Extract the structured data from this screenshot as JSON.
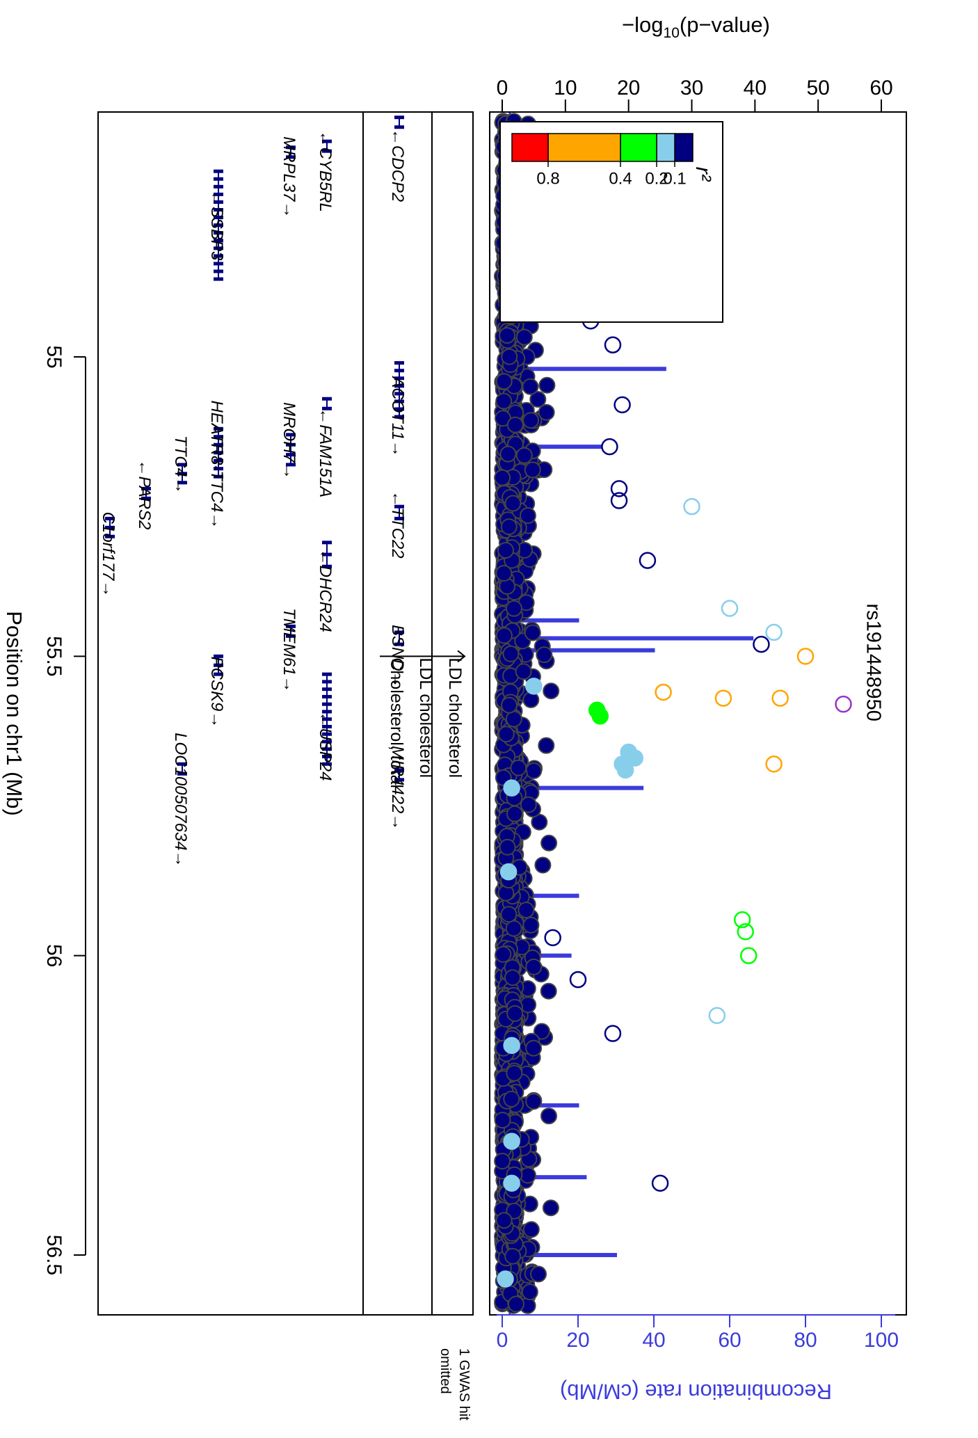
{
  "chart_data": {
    "type": "scatter",
    "orientation": "rotated-90-clockwise",
    "ylabel_pre": "−log",
    "ylabel_sub": "10",
    "ylabel_post": "(p−value)",
    "ylim": [
      0,
      60
    ],
    "yticks": [
      "0",
      "10",
      "20",
      "30",
      "40",
      "50",
      "60"
    ],
    "rec_label": "Recombination rate (cM/Mb)",
    "rec_ylim": [
      0,
      100
    ],
    "rec_ticks": [
      "0",
      "20",
      "40",
      "60",
      "80",
      "100"
    ],
    "xlabel": "Position on chr1 (Mb)",
    "xlim": [
      54.6,
      56.55
    ],
    "xticks": [
      "55",
      "55.5",
      "56",
      "56.5"
    ],
    "lead_snp": {
      "label": "rs191448950",
      "x": 55.58,
      "y": 54
    },
    "legend": {
      "title": "r²",
      "bins": [
        {
          "color": "#000080"
        },
        {
          "color": "#87ceeb"
        },
        {
          "color": "#00ff00"
        },
        {
          "color": "#ffa500"
        },
        {
          "color": "#ff0000"
        }
      ],
      "labels": [
        "0.1",
        "0.2",
        "0.4",
        "0.8"
      ]
    },
    "gwas_track": {
      "labels": [
        "LDL cholesterol",
        "LDL cholesterol",
        "Cholesterol, total"
      ],
      "x": 55.5,
      "note_line1": "1 GWAS hit",
      "note_line2": "omitted"
    },
    "highlighted_points": [
      {
        "x": 55.5,
        "y": 48,
        "r2_bin": "0.4-0.8"
      },
      {
        "x": 55.56,
        "y": 25.5,
        "r2_bin": "0.4-0.8"
      },
      {
        "x": 55.57,
        "y": 35,
        "r2_bin": "0.4-0.8"
      },
      {
        "x": 55.57,
        "y": 44,
        "r2_bin": "0.4-0.8"
      },
      {
        "x": 55.68,
        "y": 43,
        "r2_bin": "0.4-0.8"
      },
      {
        "x": 55.59,
        "y": 15,
        "r2_bin": "0.2-0.4"
      },
      {
        "x": 55.6,
        "y": 15.5,
        "r2_bin": "0.2-0.4"
      },
      {
        "x": 56.0,
        "y": 39,
        "r2_bin": "0.2-0.4"
      },
      {
        "x": 55.94,
        "y": 38,
        "r2_bin": "0.2-0.4"
      },
      {
        "x": 55.96,
        "y": 38.5,
        "r2_bin": "0.2-0.4"
      },
      {
        "x": 55.25,
        "y": 30,
        "r2_bin": "0.1-0.2"
      },
      {
        "x": 55.42,
        "y": 36,
        "r2_bin": "0.1-0.2"
      },
      {
        "x": 55.46,
        "y": 43,
        "r2_bin": "0.1-0.2"
      },
      {
        "x": 56.1,
        "y": 34,
        "r2_bin": "0.1-0.2"
      },
      {
        "x": 55.55,
        "y": 5,
        "r2_bin": "0.1-0.2"
      },
      {
        "x": 55.66,
        "y": 20,
        "r2_bin": "0.1-0.2"
      },
      {
        "x": 55.67,
        "y": 21,
        "r2_bin": "0.1-0.2"
      },
      {
        "x": 55.68,
        "y": 19,
        "r2_bin": "0.1-0.2"
      },
      {
        "x": 55.69,
        "y": 19.5,
        "r2_bin": "0.1-0.2"
      },
      {
        "x": 55.72,
        "y": 1.5,
        "r2_bin": "0.1-0.2"
      },
      {
        "x": 55.86,
        "y": 1,
        "r2_bin": "0.1-0.2"
      },
      {
        "x": 56.15,
        "y": 1.5,
        "r2_bin": "0.1-0.2"
      },
      {
        "x": 56.31,
        "y": 1.5,
        "r2_bin": "0.1-0.2"
      },
      {
        "x": 56.38,
        "y": 1.5,
        "r2_bin": "0.1-0.2"
      },
      {
        "x": 56.54,
        "y": 0.5,
        "r2_bin": "0.1-0.2"
      }
    ],
    "notable_low_ld_points": [
      {
        "x": 54.65,
        "y": 15
      },
      {
        "x": 54.66,
        "y": 15.5
      },
      {
        "x": 54.7,
        "y": 17.5
      },
      {
        "x": 54.75,
        "y": 21
      },
      {
        "x": 54.85,
        "y": 24
      },
      {
        "x": 54.87,
        "y": 23
      },
      {
        "x": 54.9,
        "y": 24.5
      },
      {
        "x": 54.88,
        "y": 23.5
      },
      {
        "x": 54.94,
        "y": 14
      },
      {
        "x": 54.98,
        "y": 17.5
      },
      {
        "x": 55.08,
        "y": 19
      },
      {
        "x": 55.15,
        "y": 17
      },
      {
        "x": 55.22,
        "y": 18.5
      },
      {
        "x": 55.24,
        "y": 18.5
      },
      {
        "x": 55.34,
        "y": 23
      },
      {
        "x": 55.48,
        "y": 41
      },
      {
        "x": 56.13,
        "y": 17.5
      },
      {
        "x": 56.38,
        "y": 25
      },
      {
        "x": 56.04,
        "y": 12
      },
      {
        "x": 55.97,
        "y": 8
      }
    ],
    "recombination_peaks": [
      {
        "x": 54.7,
        "y": 12
      },
      {
        "x": 54.78,
        "y": 38
      },
      {
        "x": 55.02,
        "y": 43
      },
      {
        "x": 55.15,
        "y": 26
      },
      {
        "x": 55.24,
        "y": 8
      },
      {
        "x": 55.44,
        "y": 20
      },
      {
        "x": 55.47,
        "y": 66
      },
      {
        "x": 55.49,
        "y": 40
      },
      {
        "x": 55.72,
        "y": 37
      },
      {
        "x": 55.9,
        "y": 20
      },
      {
        "x": 56.0,
        "y": 18
      },
      {
        "x": 56.25,
        "y": 20
      },
      {
        "x": 56.37,
        "y": 22
      },
      {
        "x": 56.5,
        "y": 30
      }
    ],
    "genes": [
      {
        "name": "CDCP2",
        "start": 54.6,
        "end": 54.61,
        "row": 0,
        "strand": "-"
      },
      {
        "name": "CYB5RL",
        "start": 54.64,
        "end": 54.655,
        "row": 2,
        "strand": "-"
      },
      {
        "name": "MRPL37",
        "start": 54.65,
        "end": 54.665,
        "row": 3,
        "strand": "+"
      },
      {
        "name": "SSBP3",
        "start": 54.69,
        "end": 54.87,
        "row": 5,
        "strand": "-"
      },
      {
        "name": "ACOT11",
        "start": 55.01,
        "end": 55.1,
        "row": 0,
        "strand": "+"
      },
      {
        "name": "FAM151A",
        "start": 55.07,
        "end": 55.085,
        "row": 2,
        "strand": "-"
      },
      {
        "name": "MROH7",
        "start": 55.13,
        "end": 55.18,
        "row": 3,
        "strand": "+"
      },
      {
        "name": "HEATR8-TTC4",
        "start": 55.12,
        "end": 55.2,
        "row": 5,
        "strand": "+"
      },
      {
        "name": "TTC4",
        "start": 55.18,
        "end": 55.21,
        "row": 6,
        "strand": "+"
      },
      {
        "name": "PARS2",
        "start": 55.22,
        "end": 55.23,
        "row": 7,
        "strand": "-"
      },
      {
        "name": "TTC22",
        "start": 55.25,
        "end": 55.27,
        "row": 0,
        "strand": "-"
      },
      {
        "name": "DHCR24",
        "start": 55.31,
        "end": 55.35,
        "row": 2,
        "strand": "-"
      },
      {
        "name": "C1orf177",
        "start": 55.27,
        "end": 55.3,
        "row": 8,
        "strand": "+"
      },
      {
        "name": "BSND",
        "start": 55.46,
        "end": 55.48,
        "row": 0,
        "strand": "+"
      },
      {
        "name": "TMEM61",
        "start": 55.45,
        "end": 55.46,
        "row": 3,
        "strand": "+"
      },
      {
        "name": "PCSK9",
        "start": 55.5,
        "end": 55.53,
        "row": 5,
        "strand": "+"
      },
      {
        "name": "USP24",
        "start": 55.53,
        "end": 55.68,
        "row": 2,
        "strand": "-"
      },
      {
        "name": "MIR4422",
        "start": 55.69,
        "end": 55.695,
        "row": 0,
        "strand": "+"
      },
      {
        "name": "LOC100507634",
        "start": 55.68,
        "end": 55.685,
        "row": 6,
        "strand": "+"
      }
    ],
    "gene_label_pos": {
      "CDCP2": 54.68,
      "CYB5RL": 54.69,
      "MRPL37": 54.7,
      "SSBP3": 54.78,
      "ACOT11": 55.1,
      "FAM151A": 55.16,
      "MROH7": 55.14,
      "HEATR8-TTC4": 55.18,
      "TTC4": 55.18,
      "PARS2": 55.23,
      "TTC22": 55.28,
      "DHCR24": 55.39,
      "C1orf177": 55.33,
      "BSND": 55.5,
      "TMEM61": 55.49,
      "PCSK9": 55.56,
      "USP24": 55.65,
      "MIR4422": 55.72,
      "LOC100507634": 55.74
    }
  }
}
